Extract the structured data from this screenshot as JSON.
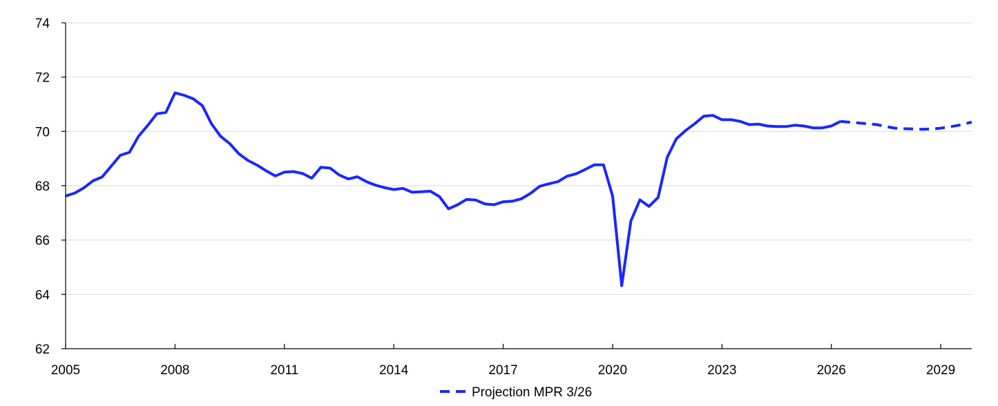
{
  "chart_data": {
    "type": "line",
    "title": "",
    "xlabel": "",
    "ylabel": "",
    "xlim": [
      2005.0,
      2029.85
    ],
    "ylim": [
      62,
      74
    ],
    "y_ticks": [
      62,
      64,
      66,
      68,
      70,
      72,
      74
    ],
    "y_tick_labels": [
      "62",
      "64",
      "66",
      "68",
      "70",
      "72",
      "74"
    ],
    "x_ticks": [
      2005,
      2008,
      2011,
      2014,
      2017,
      2020,
      2023,
      2026,
      2029
    ],
    "x_tick_labels": [
      "2005",
      "2008",
      "2011",
      "2014",
      "2017",
      "2020",
      "2023",
      "2026",
      "2029"
    ],
    "grid": "horizontal",
    "legend_position": "bottom-center",
    "colors": {
      "line": "#1a27ff",
      "grid": "#d9d9d9",
      "axis": "#000000"
    },
    "series": [
      {
        "style": "solid",
        "x": [
          2005.0,
          2005.25,
          2005.5,
          2005.75,
          2006.0,
          2006.25,
          2006.5,
          2006.75,
          2007.0,
          2007.25,
          2007.5,
          2007.75,
          2008.0,
          2008.25,
          2008.5,
          2008.75,
          2009.0,
          2009.25,
          2009.5,
          2009.75,
          2010.0,
          2010.25,
          2010.5,
          2010.75,
          2011.0,
          2011.25,
          2011.5,
          2011.75,
          2012.0,
          2012.25,
          2012.5,
          2012.75,
          2013.0,
          2013.25,
          2013.5,
          2013.75,
          2014.0,
          2014.25,
          2014.5,
          2014.75,
          2015.0,
          2015.25,
          2015.5,
          2015.75,
          2016.0,
          2016.25,
          2016.5,
          2016.75,
          2017.0,
          2017.25,
          2017.5,
          2017.75,
          2018.0,
          2018.25,
          2018.5,
          2018.75,
          2019.0,
          2019.25,
          2019.5,
          2019.75,
          2020.0,
          2020.25,
          2020.5,
          2020.75,
          2021.0,
          2021.25,
          2021.5,
          2021.75,
          2022.0,
          2022.25,
          2022.5,
          2022.75,
          2023.0,
          2023.25,
          2023.5,
          2023.75,
          2024.0,
          2024.25,
          2024.5,
          2024.75,
          2025.0,
          2025.25,
          2025.5,
          2025.75,
          2026.0,
          2026.25
        ],
        "y": [
          67.62,
          67.73,
          67.92,
          68.18,
          68.32,
          68.72,
          69.12,
          69.23,
          69.82,
          70.22,
          70.65,
          70.7,
          71.42,
          71.33,
          71.2,
          70.95,
          70.28,
          69.82,
          69.55,
          69.18,
          68.93,
          68.76,
          68.55,
          68.36,
          68.5,
          68.52,
          68.45,
          68.28,
          68.68,
          68.65,
          68.4,
          68.25,
          68.33,
          68.15,
          68.02,
          67.93,
          67.86,
          67.9,
          67.76,
          67.78,
          67.8,
          67.6,
          67.15,
          67.3,
          67.5,
          67.47,
          67.33,
          67.3,
          67.41,
          67.43,
          67.52,
          67.72,
          67.98,
          68.07,
          68.15,
          68.35,
          68.44,
          68.6,
          68.77,
          68.77,
          67.62,
          64.32,
          66.7,
          67.48,
          67.24,
          67.57,
          69.05,
          69.73,
          70.03,
          70.28,
          70.56,
          70.59,
          70.43,
          70.43,
          70.37,
          70.25,
          70.27,
          70.2,
          70.18,
          70.18,
          70.23,
          70.2,
          70.13,
          70.13,
          70.2,
          70.37
        ]
      },
      {
        "name": "Projection MPR 3/26",
        "style": "dashed",
        "x": [
          2026.25,
          2026.5,
          2026.75,
          2027.0,
          2027.25,
          2027.5,
          2027.75,
          2028.0,
          2028.25,
          2028.5,
          2028.75,
          2029.0,
          2029.25,
          2029.5,
          2029.75,
          2029.85
        ],
        "y": [
          70.37,
          70.34,
          70.31,
          70.28,
          70.25,
          70.18,
          70.12,
          70.1,
          70.09,
          70.08,
          70.09,
          70.12,
          70.17,
          70.23,
          70.31,
          70.34
        ]
      }
    ]
  }
}
